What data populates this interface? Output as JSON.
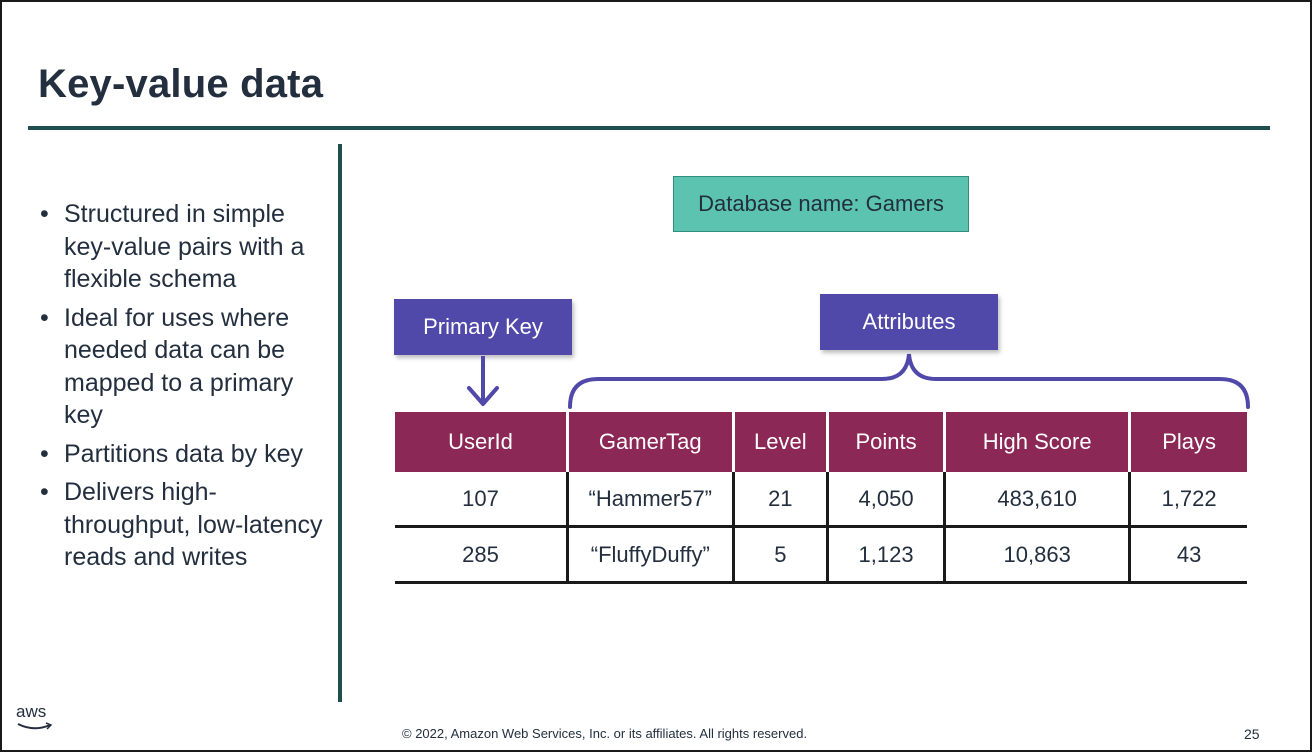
{
  "slide": {
    "title": "Key-value data",
    "bullets": [
      "Structured in simple key-value pairs with a flexible schema",
      "Ideal for uses where needed data can be mapped to a primary key",
      "Partitions data by key",
      "Delivers high-throughput, low-latency reads and writes"
    ],
    "bullet_symbol": "•",
    "database_name": "Database name: Gamers",
    "primary_key_label": "Primary Key",
    "attributes_label": "Attributes",
    "table": {
      "headers": [
        "UserId",
        "GamerTag",
        "Level",
        "Points",
        "High Score",
        "Plays"
      ],
      "rows": [
        [
          "107",
          "“Hammer57”",
          "21",
          "4,050",
          "483,610",
          "1,722"
        ],
        [
          "285",
          "“FluffyDuffy”",
          "5",
          "1,123",
          "10,863",
          "43"
        ]
      ]
    },
    "footer": "© 2022, Amazon Web Services, Inc. or its affiliates. All rights reserved.",
    "page_number": "25",
    "logo_text": "aws"
  },
  "colors": {
    "title": "#232f3e",
    "rule": "#1f4e4e",
    "db_box": "#5cc3b0",
    "tag": "#5149a9",
    "table_header": "#8c2856"
  }
}
